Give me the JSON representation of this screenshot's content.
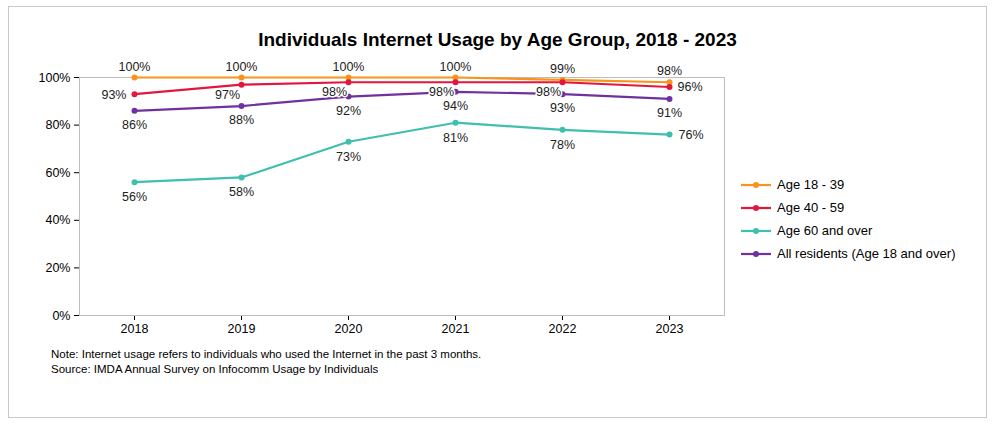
{
  "chart_data": {
    "type": "line",
    "title": "Individuals Internet Usage by Age Group, 2018 - 2023",
    "x": [
      2018,
      2019,
      2020,
      2021,
      2022,
      2023
    ],
    "ylim": [
      0,
      100
    ],
    "yticks": [
      {
        "value": 0,
        "label": "0%"
      },
      {
        "value": 20,
        "label": "20%"
      },
      {
        "value": 40,
        "label": "40%"
      },
      {
        "value": 60,
        "label": "60%"
      },
      {
        "value": 80,
        "label": "80%"
      },
      {
        "value": 100,
        "label": "100%"
      }
    ],
    "grid": false,
    "legend": "right",
    "data_labels": true,
    "marker": "circle",
    "series": [
      {
        "name": "Age 18 - 39",
        "color": "#f7941d",
        "values": [
          100,
          100,
          100,
          100,
          99,
          98
        ],
        "value_labels": [
          "100%",
          "100%",
          "100%",
          "100%",
          "99%",
          "98%"
        ]
      },
      {
        "name": "Age 40 - 59",
        "color": "#e3173e",
        "values": [
          93,
          97,
          98,
          98,
          98,
          96
        ],
        "value_labels": [
          "93%",
          "97%",
          "98%",
          "98%",
          "98%",
          "96%"
        ]
      },
      {
        "name": "Age 60 and over",
        "color": "#3fbfad",
        "values": [
          56,
          58,
          73,
          81,
          78,
          76
        ],
        "value_labels": [
          "56%",
          "58%",
          "73%",
          "81%",
          "78%",
          "76%"
        ]
      },
      {
        "name": "All residents (Age 18 and over)",
        "color": "#7030a0",
        "values": [
          86,
          88,
          92,
          94,
          93,
          91
        ],
        "value_labels": [
          "86%",
          "88%",
          "92%",
          "94%",
          "93%",
          "91%"
        ]
      }
    ],
    "annotations": [
      "Note: Internet usage refers to individuals who used the Internet in the past 3 months.",
      "Source: IMDA Annual Survey on Infocomm Usage by Individuals"
    ]
  }
}
